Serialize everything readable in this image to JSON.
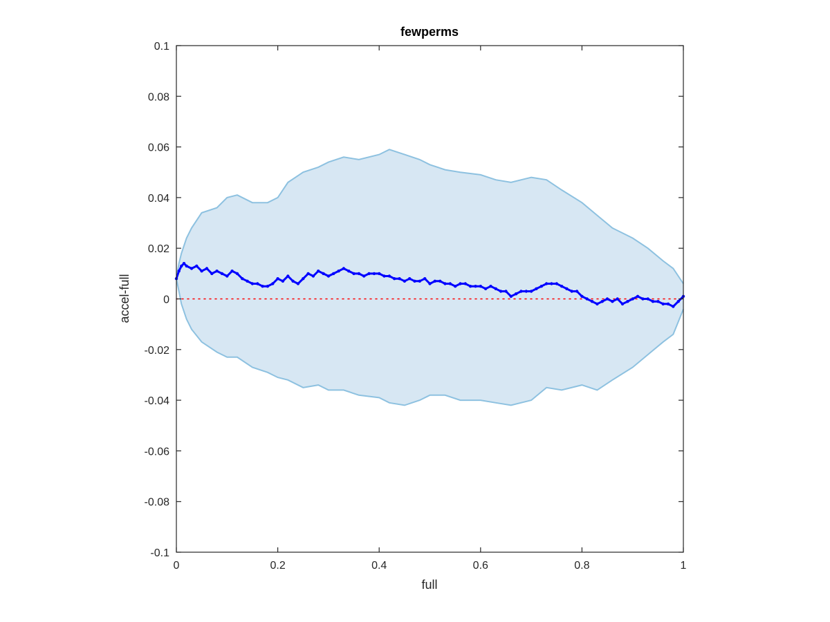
{
  "chart_data": {
    "type": "line",
    "title": "fewperms",
    "xlabel": "full",
    "ylabel": "accel-full",
    "xlim": [
      0,
      1
    ],
    "ylim": [
      -0.1,
      0.1
    ],
    "x_ticks": [
      0,
      0.2,
      0.4,
      0.6,
      0.8,
      1
    ],
    "x_tick_labels": [
      "0",
      "0.2",
      "0.4",
      "0.6",
      "0.8",
      "1"
    ],
    "y_ticks": [
      -0.1,
      -0.08,
      -0.06,
      -0.04,
      -0.02,
      0,
      0.02,
      0.04,
      0.06,
      0.08,
      0.1
    ],
    "y_tick_labels": [
      "-0.1",
      "-0.08",
      "-0.06",
      "-0.04",
      "-0.02",
      "0",
      "0.02",
      "0.04",
      "0.06",
      "0.08",
      "0.1"
    ],
    "grid": false,
    "box": true,
    "band": {
      "x": [
        0,
        0.005,
        0.01,
        0.02,
        0.03,
        0.05,
        0.08,
        0.1,
        0.12,
        0.15,
        0.18,
        0.2,
        0.22,
        0.25,
        0.28,
        0.3,
        0.33,
        0.36,
        0.4,
        0.42,
        0.45,
        0.48,
        0.5,
        0.53,
        0.56,
        0.6,
        0.63,
        0.66,
        0.7,
        0.73,
        0.76,
        0.8,
        0.83,
        0.86,
        0.9,
        0.93,
        0.96,
        0.98,
        0.99,
        1.0
      ],
      "upper": [
        0.008,
        0.014,
        0.018,
        0.024,
        0.028,
        0.034,
        0.036,
        0.04,
        0.041,
        0.038,
        0.038,
        0.04,
        0.046,
        0.05,
        0.052,
        0.054,
        0.056,
        0.055,
        0.057,
        0.059,
        0.057,
        0.055,
        0.053,
        0.051,
        0.05,
        0.049,
        0.047,
        0.046,
        0.048,
        0.047,
        0.043,
        0.038,
        0.033,
        0.028,
        0.024,
        0.02,
        0.015,
        0.012,
        0.009,
        0.006
      ],
      "lower": [
        0.008,
        0.003,
        -0.002,
        -0.008,
        -0.012,
        -0.017,
        -0.021,
        -0.023,
        -0.023,
        -0.027,
        -0.029,
        -0.031,
        -0.032,
        -0.035,
        -0.034,
        -0.036,
        -0.036,
        -0.038,
        -0.039,
        -0.041,
        -0.042,
        -0.04,
        -0.038,
        -0.038,
        -0.04,
        -0.04,
        -0.041,
        -0.042,
        -0.04,
        -0.035,
        -0.036,
        -0.034,
        -0.036,
        -0.032,
        -0.027,
        -0.022,
        -0.017,
        -0.014,
        -0.009,
        -0.004
      ],
      "fill_color": "#d7e7f3",
      "edge_color": "#8dc1e0"
    },
    "series": [
      {
        "x": [
          0,
          0.005,
          0.01,
          0.015,
          0.02,
          0.03,
          0.04,
          0.05,
          0.06,
          0.07,
          0.08,
          0.09,
          0.1,
          0.11,
          0.12,
          0.13,
          0.14,
          0.15,
          0.16,
          0.17,
          0.18,
          0.19,
          0.2,
          0.21,
          0.22,
          0.23,
          0.24,
          0.25,
          0.26,
          0.27,
          0.28,
          0.29,
          0.3,
          0.31,
          0.32,
          0.33,
          0.34,
          0.35,
          0.36,
          0.37,
          0.38,
          0.39,
          0.4,
          0.41,
          0.42,
          0.43,
          0.44,
          0.45,
          0.46,
          0.47,
          0.48,
          0.49,
          0.5,
          0.51,
          0.52,
          0.53,
          0.54,
          0.55,
          0.56,
          0.57,
          0.58,
          0.59,
          0.6,
          0.61,
          0.62,
          0.63,
          0.64,
          0.65,
          0.66,
          0.67,
          0.68,
          0.69,
          0.7,
          0.71,
          0.72,
          0.73,
          0.74,
          0.75,
          0.76,
          0.77,
          0.78,
          0.79,
          0.8,
          0.81,
          0.82,
          0.83,
          0.84,
          0.85,
          0.86,
          0.87,
          0.88,
          0.89,
          0.9,
          0.91,
          0.92,
          0.93,
          0.94,
          0.95,
          0.96,
          0.97,
          0.98,
          0.99,
          1.0
        ],
        "values": [
          0.008,
          0.011,
          0.013,
          0.014,
          0.013,
          0.012,
          0.013,
          0.011,
          0.012,
          0.01,
          0.011,
          0.01,
          0.009,
          0.011,
          0.01,
          0.008,
          0.007,
          0.006,
          0.006,
          0.005,
          0.005,
          0.006,
          0.008,
          0.007,
          0.009,
          0.007,
          0.006,
          0.008,
          0.01,
          0.009,
          0.011,
          0.01,
          0.009,
          0.01,
          0.011,
          0.012,
          0.011,
          0.01,
          0.01,
          0.009,
          0.01,
          0.01,
          0.01,
          0.009,
          0.009,
          0.008,
          0.008,
          0.007,
          0.008,
          0.007,
          0.007,
          0.008,
          0.006,
          0.007,
          0.007,
          0.006,
          0.006,
          0.005,
          0.006,
          0.006,
          0.005,
          0.005,
          0.005,
          0.004,
          0.005,
          0.004,
          0.003,
          0.003,
          0.001,
          0.002,
          0.003,
          0.003,
          0.003,
          0.004,
          0.005,
          0.006,
          0.006,
          0.006,
          0.005,
          0.004,
          0.003,
          0.003,
          0.001,
          0.0,
          -0.001,
          -0.002,
          -0.001,
          0.0,
          -0.001,
          0.0,
          -0.002,
          -0.001,
          0.0,
          0.001,
          0.0,
          0.0,
          -0.001,
          -0.001,
          -0.002,
          -0.002,
          -0.003,
          -0.001,
          0.001
        ],
        "color": "#0000ff",
        "marker": "dot"
      }
    ],
    "reference_line": {
      "y": 0,
      "color": "#ff0000",
      "style": "dotted"
    }
  }
}
